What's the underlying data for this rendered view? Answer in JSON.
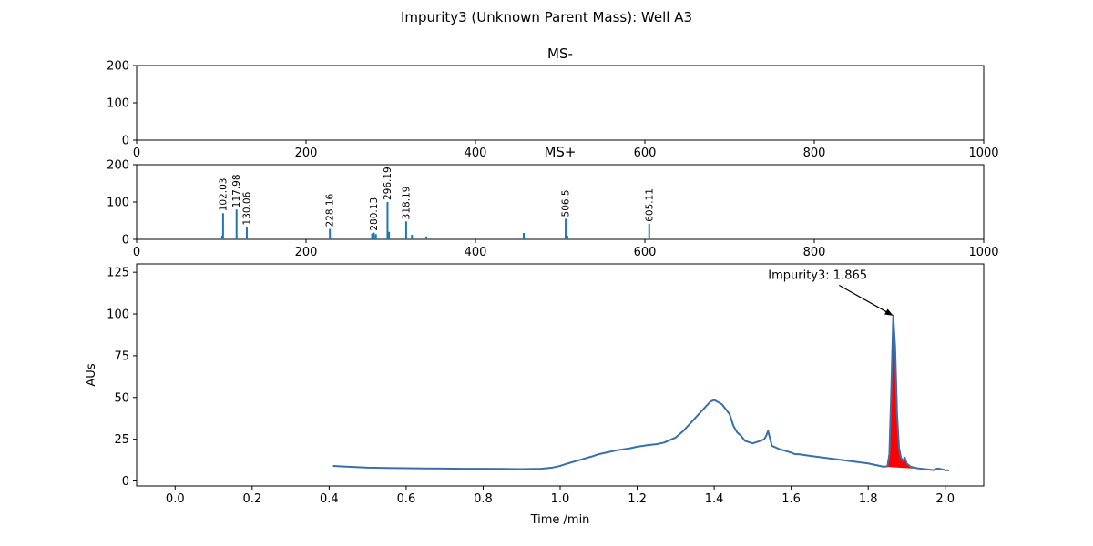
{
  "figure": {
    "title": "Impurity3 (Unknown Parent Mass): Well A3"
  },
  "chart_data": [
    {
      "type": "bar",
      "title": "MS-",
      "xlim": [
        0,
        1000
      ],
      "ylim": [
        0,
        200
      ],
      "xticks": [
        0,
        200,
        400,
        600,
        800,
        1000
      ],
      "yticks": [
        0,
        100,
        200
      ],
      "color": "#1f77b4",
      "peaks": []
    },
    {
      "type": "bar",
      "title": "MS+",
      "xlim": [
        0,
        1000
      ],
      "ylim": [
        0,
        200
      ],
      "xticks": [
        0,
        200,
        400,
        600,
        800,
        1000
      ],
      "yticks": [
        0,
        100,
        200
      ],
      "color": "#1f77b4",
      "peaks": [
        {
          "mz": 100.9,
          "intensity": 10
        },
        {
          "mz": 102.03,
          "intensity": 70,
          "label": "102.03"
        },
        {
          "mz": 117.98,
          "intensity": 80,
          "label": "117.98"
        },
        {
          "mz": 130.06,
          "intensity": 33,
          "label": "130.06"
        },
        {
          "mz": 228.16,
          "intensity": 28,
          "label": "228.16"
        },
        {
          "mz": 278.0,
          "intensity": 16
        },
        {
          "mz": 280.13,
          "intensity": 18,
          "label": "280.13"
        },
        {
          "mz": 282.5,
          "intensity": 14
        },
        {
          "mz": 296.19,
          "intensity": 100,
          "label": "296.19"
        },
        {
          "mz": 298.0,
          "intensity": 20
        },
        {
          "mz": 318.19,
          "intensity": 48,
          "label": "318.19"
        },
        {
          "mz": 325.0,
          "intensity": 12
        },
        {
          "mz": 342.0,
          "intensity": 8
        },
        {
          "mz": 457.0,
          "intensity": 17
        },
        {
          "mz": 506.5,
          "intensity": 55,
          "label": "506.5"
        },
        {
          "mz": 508.5,
          "intensity": 10
        },
        {
          "mz": 605.11,
          "intensity": 42,
          "label": "605.11"
        }
      ]
    },
    {
      "type": "line",
      "xlabel": "Time /min",
      "ylabel": "AUs",
      "xlim": [
        -0.1,
        2.1
      ],
      "ylim": [
        -3,
        130
      ],
      "xticks": [
        0.0,
        0.2,
        0.4,
        0.6,
        0.8,
        1.0,
        1.2,
        1.4,
        1.6,
        1.8,
        2.0
      ],
      "xtick_labels": [
        "0.0",
        "0.2",
        "0.4",
        "0.6",
        "0.8",
        "1.0",
        "1.2",
        "1.4",
        "1.6",
        "1.8",
        "2.0"
      ],
      "yticks": [
        0,
        25,
        50,
        75,
        100,
        125
      ],
      "line_color": "#3a6fa8",
      "fill_color": "#ff0000",
      "annotation": {
        "text": "Impurity3: 1.865",
        "x": 1.865,
        "y": 99,
        "text_x": 1.54,
        "text_y": 121
      },
      "peak_fill_range": [
        1.84,
        1.95
      ],
      "series": [
        {
          "x": [
            0.41,
            0.45,
            0.5,
            0.55,
            0.6,
            0.65,
            0.7,
            0.75,
            0.8,
            0.85,
            0.9,
            0.95,
            0.98,
            1.0,
            1.02,
            1.05,
            1.08,
            1.1,
            1.13,
            1.15,
            1.18,
            1.2,
            1.23,
            1.25,
            1.27,
            1.3,
            1.32,
            1.34,
            1.36,
            1.38,
            1.39,
            1.4,
            1.42,
            1.44,
            1.45,
            1.46,
            1.47,
            1.48,
            1.5,
            1.52,
            1.53,
            1.535,
            1.54,
            1.55,
            1.57,
            1.6,
            1.61,
            1.62,
            1.65,
            1.7,
            1.75,
            1.8,
            1.84,
            1.85,
            1.855,
            1.86,
            1.865,
            1.87,
            1.875,
            1.88,
            1.885,
            1.89,
            1.895,
            1.9,
            1.91,
            1.93,
            1.95,
            1.97,
            1.98,
            1.99,
            2.0,
            2.01
          ],
          "y": [
            9,
            8.5,
            8,
            7.8,
            7.6,
            7.5,
            7.4,
            7.3,
            7.3,
            7.2,
            7.1,
            7.3,
            8,
            9,
            10.5,
            12.5,
            14.5,
            16,
            17.5,
            18.5,
            19.5,
            20.5,
            21.5,
            22,
            23,
            26,
            30,
            35,
            40,
            45,
            47.5,
            48.5,
            46,
            40,
            33,
            29,
            27,
            24,
            22.5,
            24,
            25,
            27,
            30,
            21,
            19,
            17,
            16,
            16,
            15,
            13.5,
            12,
            10.5,
            8.5,
            8.8,
            16,
            55,
            99,
            80,
            40,
            20,
            14,
            12,
            14,
            10.5,
            8.5,
            7.5,
            7,
            6.5,
            7.5,
            7,
            6.5,
            6.3
          ]
        }
      ]
    }
  ]
}
